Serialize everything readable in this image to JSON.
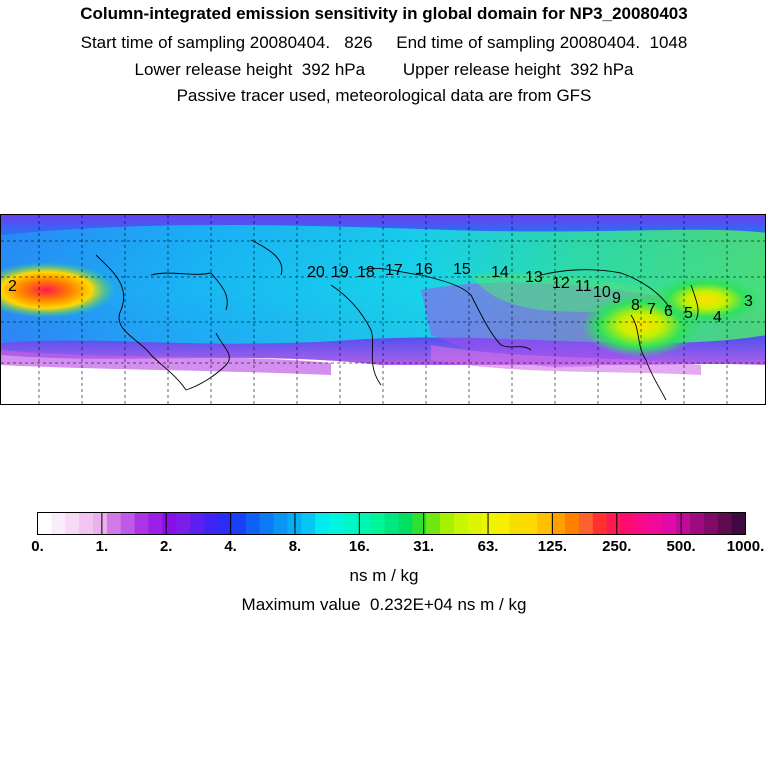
{
  "header": {
    "title": "Column-integrated emission sensitivity in global domain for NP3_20080403",
    "line1": "Start time of sampling 20080404.   826     End time of sampling 20080404.  1048",
    "line2": "Lower release height  392 hPa        Upper release height  392 hPa",
    "line3": "Passive tracer used, meteorological data are from GFS"
  },
  "map": {
    "trajectory_labels": [
      "20",
      "19",
      "18",
      "17",
      "16",
      "15",
      "14",
      "13",
      "12",
      "11",
      "10",
      "9",
      "8",
      "7",
      "6",
      "5",
      "4",
      "3",
      "2"
    ]
  },
  "colorbar": {
    "tick_labels": [
      "0.",
      "1.",
      "2.",
      "4.",
      "8.",
      "16.",
      "31.",
      "63.",
      "125.",
      "250.",
      "500.",
      "1000."
    ],
    "colors": [
      "#ffffff",
      "#fbecfb",
      "#f6daf6",
      "#f1c4f1",
      "#ecb0ec",
      "#d278e8",
      "#bf59e8",
      "#ad33e8",
      "#9c1ee8",
      "#8a0ee8",
      "#7a1ee8",
      "#5b1ff0",
      "#4024f5",
      "#2a2df5",
      "#1a40f5",
      "#1060f5",
      "#0a7bf5",
      "#0a95f5",
      "#08aef5",
      "#06c6f5",
      "#00ebf0",
      "#00f5e0",
      "#00f5c8",
      "#00f5b0",
      "#00f598",
      "#00e680",
      "#00e060",
      "#30e030",
      "#70e810",
      "#a8f000",
      "#c8f500",
      "#ddf500",
      "#eef500",
      "#f7ee00",
      "#f7dc00",
      "#ffd800",
      "#ffc000",
      "#ffa000",
      "#ff8000",
      "#ff6030",
      "#ff3030",
      "#ff1a50",
      "#ff0a70",
      "#f80a88",
      "#f00a98",
      "#e00aa8",
      "#c00a98",
      "#a00a80",
      "#800a68",
      "#600a50",
      "#400a40"
    ],
    "units": "ns m / kg",
    "max_value_text": "Maximum value  0.232E+04 ns m / kg"
  }
}
